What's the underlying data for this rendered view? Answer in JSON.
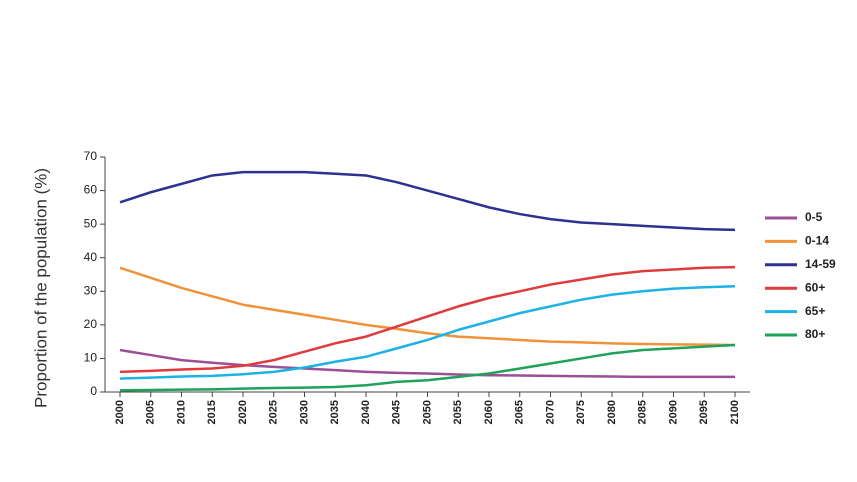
{
  "chart_data": {
    "type": "line",
    "y_axis_label": "Proportion of the population (%)",
    "x": [
      2000,
      2005,
      2010,
      2015,
      2020,
      2025,
      2030,
      2035,
      2040,
      2045,
      2050,
      2055,
      2060,
      2065,
      2070,
      2075,
      2080,
      2085,
      2090,
      2095,
      2100
    ],
    "xlim": [
      2000,
      2100
    ],
    "xticks": [
      2000,
      2005,
      2010,
      2015,
      2020,
      2025,
      2030,
      2035,
      2040,
      2045,
      2050,
      2055,
      2060,
      2065,
      2070,
      2075,
      2080,
      2085,
      2090,
      2095,
      2100
    ],
    "ylim": [
      0,
      70
    ],
    "yticks": [
      0,
      10,
      20,
      30,
      40,
      50,
      60,
      70
    ],
    "series": [
      {
        "name": "0-5",
        "color": "#9b4f96",
        "values": [
          12.5,
          11,
          9.5,
          8.7,
          8,
          7.5,
          7,
          6.5,
          6,
          5.7,
          5.5,
          5.2,
          5,
          4.9,
          4.8,
          4.7,
          4.6,
          4.5,
          4.5,
          4.5,
          4.5
        ]
      },
      {
        "name": "0-14",
        "color": "#f0923a",
        "values": [
          37,
          34,
          31,
          28.5,
          26,
          24.5,
          23,
          21.5,
          20,
          18.8,
          17.5,
          16.5,
          16,
          15.5,
          15,
          14.8,
          14.5,
          14.3,
          14.2,
          14.1,
          14
        ]
      },
      {
        "name": "14-59",
        "color": "#2e3192",
        "values": [
          56.5,
          59.5,
          62,
          64.5,
          65.5,
          65.5,
          65.5,
          65,
          64.5,
          62.5,
          60,
          57.5,
          55,
          53,
          51.5,
          50.5,
          50,
          49.5,
          49,
          48.5,
          48.3
        ]
      },
      {
        "name": "60+",
        "color": "#e03a3e",
        "values": [
          6,
          6.3,
          6.7,
          7,
          7.8,
          9.5,
          12,
          14.5,
          16.5,
          19.5,
          22.5,
          25.5,
          28,
          30,
          32,
          33.5,
          35,
          36,
          36.5,
          37,
          37.2
        ]
      },
      {
        "name": "65+",
        "color": "#1cb2e6",
        "values": [
          4,
          4.3,
          4.6,
          4.8,
          5.3,
          6,
          7.3,
          9,
          10.5,
          13,
          15.5,
          18.5,
          21,
          23.5,
          25.5,
          27.5,
          29,
          30,
          30.8,
          31.2,
          31.5
        ]
      },
      {
        "name": "80+",
        "color": "#1fa25a",
        "values": [
          0.5,
          0.6,
          0.7,
          0.8,
          1,
          1.2,
          1.3,
          1.5,
          2,
          3,
          3.5,
          4.5,
          5.5,
          7,
          8.5,
          10,
          11.5,
          12.5,
          13,
          13.5,
          14
        ]
      }
    ]
  }
}
